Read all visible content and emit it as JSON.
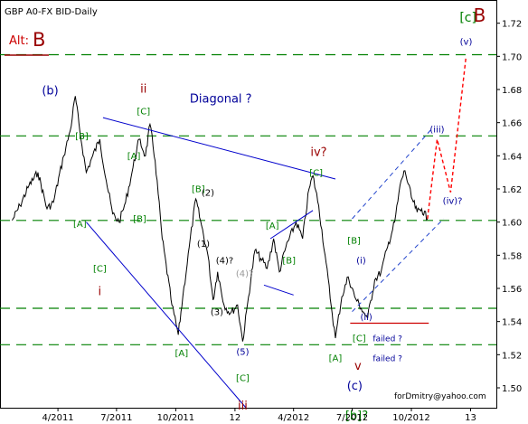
{
  "header": {
    "title": "GBP A0-FX BID-Daily",
    "alt_prefix": "Alt:",
    "alt_value": "B"
  },
  "footer": {
    "credit": "forDmitry@yahoo.com"
  },
  "colors": {
    "price": "#000000",
    "support_level": "#008000",
    "trendline": "#0000cc",
    "channel": "#2244cc",
    "failed_line": "#cc0000",
    "forecast": "#ff0000",
    "wave_green": "#008000",
    "wave_red": "#990000",
    "wave_blue": "#000099",
    "alt_red": "#cc0000"
  },
  "chart_data": {
    "type": "line",
    "title": "GBP A0-FX BID-Daily",
    "xlabel": "",
    "ylabel": "",
    "x_ticks": [
      "4/2011",
      "7/2011",
      "10/2011",
      "12",
      "4/2012",
      "7/2012",
      "10/2012",
      "13"
    ],
    "y_ticks": [
      1.5,
      1.52,
      1.54,
      1.56,
      1.58,
      1.6,
      1.62,
      1.64,
      1.66,
      1.68,
      1.7,
      1.72
    ],
    "ylim": [
      1.488,
      1.734
    ],
    "grid": false,
    "series": [
      {
        "values": [
          [
            "2011-01-20",
            1.601
          ],
          [
            "2011-02-01",
            1.61
          ],
          [
            "2011-02-15",
            1.622
          ],
          [
            "2011-03-01",
            1.63
          ],
          [
            "2011-03-15",
            1.608
          ],
          [
            "2011-03-25",
            1.612
          ],
          [
            "2011-04-10",
            1.64
          ],
          [
            "2011-04-20",
            1.655
          ],
          [
            "2011-04-28",
            1.676
          ],
          [
            "2011-05-05",
            1.655
          ],
          [
            "2011-05-15",
            1.63
          ],
          [
            "2011-05-25",
            1.64
          ],
          [
            "2011-06-05",
            1.65
          ],
          [
            "2011-06-15",
            1.625
          ],
          [
            "2011-06-25",
            1.605
          ],
          [
            "2011-07-05",
            1.6
          ],
          [
            "2011-07-15",
            1.612
          ],
          [
            "2011-07-25",
            1.63
          ],
          [
            "2011-08-05",
            1.65
          ],
          [
            "2011-08-15",
            1.64
          ],
          [
            "2011-08-22",
            1.659
          ],
          [
            "2011-08-30",
            1.637
          ],
          [
            "2011-09-10",
            1.59
          ],
          [
            "2011-09-25",
            1.55
          ],
          [
            "2011-10-05",
            1.532
          ],
          [
            "2011-10-12",
            1.555
          ],
          [
            "2011-10-22",
            1.585
          ],
          [
            "2011-11-01",
            1.614
          ],
          [
            "2011-11-10",
            1.598
          ],
          [
            "2011-11-20",
            1.58
          ],
          [
            "2011-11-28",
            1.553
          ],
          [
            "2011-12-05",
            1.57
          ],
          [
            "2011-12-15",
            1.55
          ],
          [
            "2011-12-25",
            1.545
          ],
          [
            "2012-01-05",
            1.55
          ],
          [
            "2012-01-13",
            1.528
          ],
          [
            "2012-01-22",
            1.555
          ],
          [
            "2012-02-01",
            1.583
          ],
          [
            "2012-02-10",
            1.578
          ],
          [
            "2012-02-20",
            1.572
          ],
          [
            "2012-03-01",
            1.59
          ],
          [
            "2012-03-10",
            1.57
          ],
          [
            "2012-03-20",
            1.585
          ],
          [
            "2012-04-05",
            1.6
          ],
          [
            "2012-04-15",
            1.59
          ],
          [
            "2012-04-25",
            1.62
          ],
          [
            "2012-05-01",
            1.628
          ],
          [
            "2012-05-10",
            1.61
          ],
          [
            "2012-05-20",
            1.58
          ],
          [
            "2012-05-31",
            1.545
          ],
          [
            "2012-06-05",
            1.53
          ],
          [
            "2012-06-15",
            1.555
          ],
          [
            "2012-06-25",
            1.567
          ],
          [
            "2012-07-05",
            1.555
          ],
          [
            "2012-07-15",
            1.548
          ],
          [
            "2012-07-25",
            1.542
          ],
          [
            "2012-08-05",
            1.565
          ],
          [
            "2012-08-15",
            1.57
          ],
          [
            "2012-08-25",
            1.585
          ],
          [
            "2012-09-05",
            1.6
          ],
          [
            "2012-09-15",
            1.625
          ],
          [
            "2012-09-21",
            1.631
          ],
          [
            "2012-10-01",
            1.615
          ],
          [
            "2012-10-10",
            1.606
          ],
          [
            "2012-10-17",
            1.608
          ],
          [
            "2012-10-26",
            1.602
          ]
        ]
      },
      {
        "values": [
          [
            "2012-10-26",
            1.602
          ],
          [
            "2012-11-10",
            1.65
          ],
          [
            "2012-12-01",
            1.618
          ],
          [
            "2012-12-25",
            1.7
          ]
        ]
      }
    ],
    "levels": [
      1.701,
      1.652,
      1.601,
      1.548,
      1.526
    ],
    "failed_level": 1.539,
    "trendlines": [
      {
        "points": [
          [
            "2011-06-10",
            1.663
          ],
          [
            "2012-06-05",
            1.626
          ]
        ]
      },
      {
        "points": [
          [
            "2011-05-15",
            1.6
          ],
          [
            "2012-01-18",
            1.488
          ]
        ]
      },
      {
        "points": [
          [
            "2012-02-25",
            1.59
          ],
          [
            "2012-05-01",
            1.607
          ]
        ]
      },
      {
        "points": [
          [
            "2012-02-15",
            1.562
          ],
          [
            "2012-04-01",
            1.556
          ]
        ]
      },
      {
        "points": [
          [
            "2012-07-01",
            1.602
          ],
          [
            "2012-11-01",
            1.656
          ]
        ]
      },
      {
        "points": [
          [
            "2012-07-01",
            1.546
          ],
          [
            "2012-11-20",
            1.602
          ]
        ]
      }
    ],
    "annotations": [
      {
        "text": "(b)",
        "x": "2011-03-20",
        "y": 1.677,
        "color": "blue",
        "size": 13
      },
      {
        "text": "ii",
        "x": "2011-08-12",
        "y": 1.678,
        "color": "red",
        "size": 13
      },
      {
        "text": "[C]",
        "x": "2011-08-12",
        "y": 1.665,
        "color": "green",
        "size": 10
      },
      {
        "text": "[B]",
        "x": "2011-05-08",
        "y": 1.65,
        "color": "green",
        "size": 10
      },
      {
        "text": "[A]",
        "x": "2011-07-28",
        "y": 1.638,
        "color": "green",
        "size": 10
      },
      {
        "text": "[B]",
        "x": "2011-08-06",
        "y": 1.6,
        "color": "green",
        "size": 10
      },
      {
        "text": "[A]",
        "x": "2011-05-05",
        "y": 1.597,
        "color": "green",
        "size": 10
      },
      {
        "text": "[C]",
        "x": "2011-06-05",
        "y": 1.57,
        "color": "green",
        "size": 10
      },
      {
        "text": "i",
        "x": "2011-06-05",
        "y": 1.556,
        "color": "red",
        "size": 13
      },
      {
        "text": "[A]",
        "x": "2011-10-10",
        "y": 1.519,
        "color": "green",
        "size": 10
      },
      {
        "text": "Diagonal ?",
        "x": "2011-12-10",
        "y": 1.672,
        "color": "blue",
        "size": 13
      },
      {
        "text": "[B]",
        "x": "2011-11-05",
        "y": 1.618,
        "color": "green",
        "size": 10
      },
      {
        "text": "(2)",
        "x": "2011-11-20",
        "y": 1.616,
        "color": "black",
        "size": 10
      },
      {
        "text": "(1)",
        "x": "2011-11-13",
        "y": 1.585,
        "color": "black",
        "size": 10
      },
      {
        "text": "(4)?",
        "x": "2011-12-16",
        "y": 1.575,
        "color": "black",
        "size": 10
      },
      {
        "text": "(4)?",
        "x": "2012-01-16",
        "y": 1.567,
        "color": "gray",
        "size": 10
      },
      {
        "text": "(3)",
        "x": "2011-12-04",
        "y": 1.544,
        "color": "black",
        "size": 10
      },
      {
        "text": "(5)",
        "x": "2012-01-13",
        "y": 1.52,
        "color": "blue",
        "size": 10
      },
      {
        "text": "[C]",
        "x": "2012-01-13",
        "y": 1.504,
        "color": "green",
        "size": 10
      },
      {
        "text": "iii",
        "x": "2012-01-13",
        "y": 1.487,
        "color": "red",
        "size": 13
      },
      {
        "text": "[A]",
        "x": "2012-02-28",
        "y": 1.596,
        "color": "green",
        "size": 10
      },
      {
        "text": "[B]",
        "x": "2012-03-25",
        "y": 1.575,
        "color": "green",
        "size": 10
      },
      {
        "text": "iv?",
        "x": "2012-05-10",
        "y": 1.64,
        "color": "red",
        "size": 13
      },
      {
        "text": "[C]",
        "x": "2012-05-06",
        "y": 1.628,
        "color": "green",
        "size": 10
      },
      {
        "text": "[B]",
        "x": "2012-07-04",
        "y": 1.587,
        "color": "green",
        "size": 10
      },
      {
        "text": "(i)",
        "x": "2012-07-15",
        "y": 1.575,
        "color": "blue",
        "size": 10
      },
      {
        "text": "(ii)",
        "x": "2012-07-23",
        "y": 1.541,
        "color": "blue",
        "size": 10
      },
      {
        "text": "[C]",
        "x": "2012-07-12",
        "y": 1.528,
        "color": "green",
        "size": 10
      },
      {
        "text": "v",
        "x": "2012-07-10",
        "y": 1.511,
        "color": "red",
        "size": 13
      },
      {
        "text": "[A]",
        "x": "2012-06-05",
        "y": 1.516,
        "color": "green",
        "size": 10
      },
      {
        "text": "(c)",
        "x": "2012-07-05",
        "y": 1.499,
        "color": "blue",
        "size": 13
      },
      {
        "text": "[b]?",
        "x": "2012-07-08",
        "y": 1.481,
        "color": "green",
        "size": 13
      },
      {
        "text": "failed ?",
        "x": "2012-08-25",
        "y": 1.528,
        "color": "blue",
        "size": 9
      },
      {
        "text": "failed ?",
        "x": "2012-08-25",
        "y": 1.516,
        "color": "blue",
        "size": 9
      },
      {
        "text": "(iii)",
        "x": "2012-11-10",
        "y": 1.654,
        "color": "blue",
        "size": 10
      },
      {
        "text": "(iv)?",
        "x": "2012-12-04",
        "y": 1.611,
        "color": "blue",
        "size": 10
      },
      {
        "text": "(v)",
        "x": "2012-12-25",
        "y": 1.707,
        "color": "blue",
        "size": 10
      },
      {
        "text": "[c]",
        "x": "2012-12-28",
        "y": 1.721,
        "color": "green",
        "size": 14
      },
      {
        "text": "B",
        "x": "2013-01-15",
        "y": 1.721,
        "color": "red",
        "size": 20
      }
    ]
  }
}
